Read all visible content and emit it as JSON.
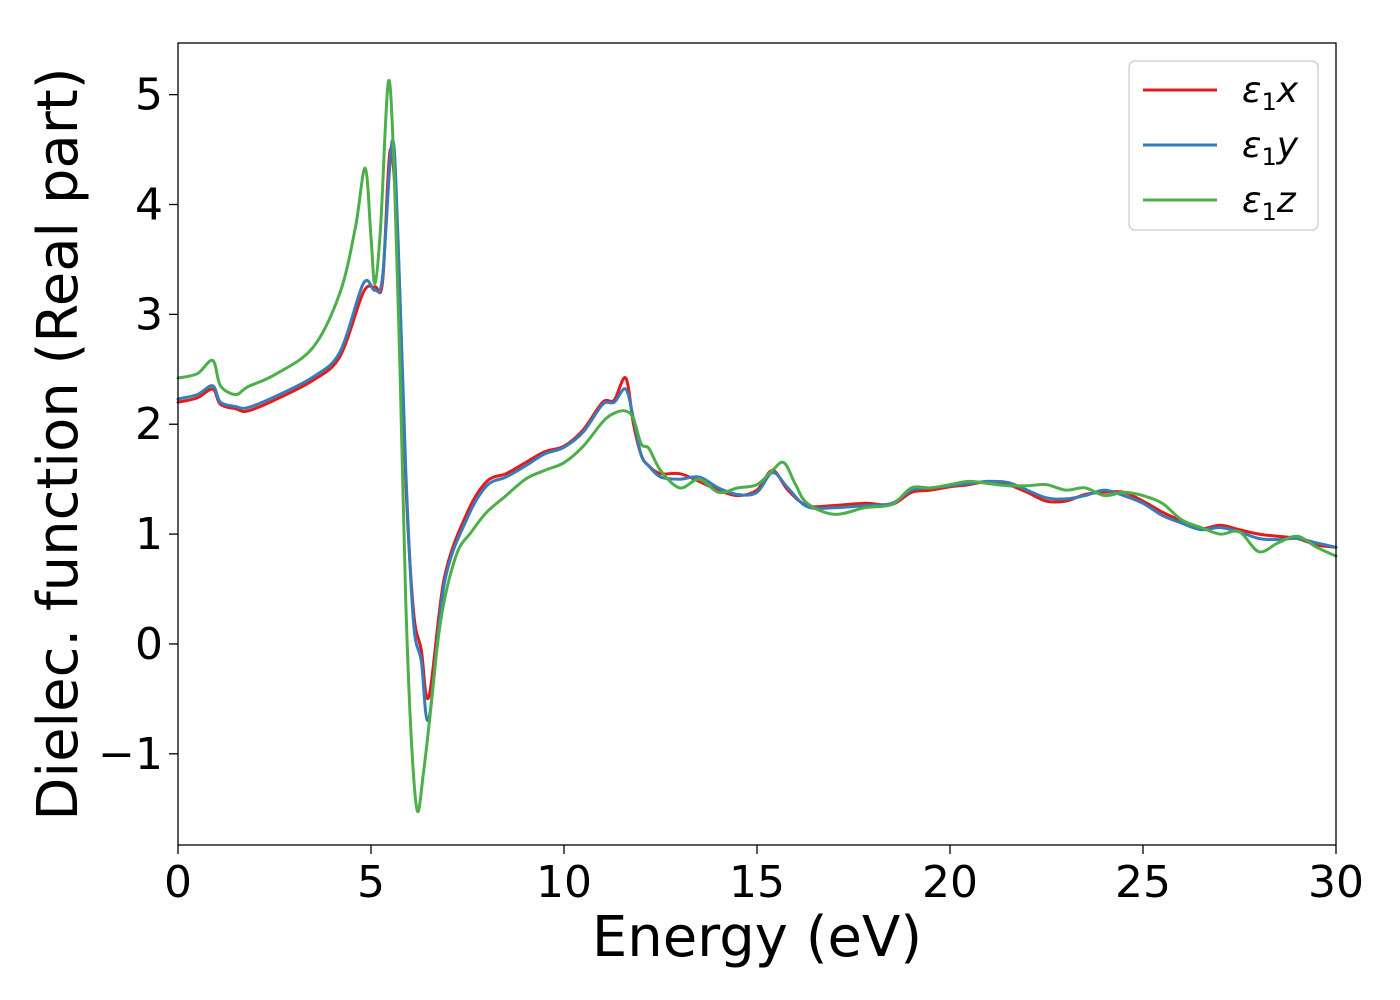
{
  "chart_data": {
    "type": "line",
    "title": "",
    "xlabel": "Energy (eV)",
    "ylabel": "Dielec. function (Real part)",
    "xlim": [
      0,
      30
    ],
    "ylim": [
      -1.83,
      5.47
    ],
    "x_ticks": [
      0,
      5,
      10,
      15,
      20,
      25,
      30
    ],
    "y_ticks": [
      -1,
      0,
      1,
      2,
      3,
      4,
      5
    ],
    "x_tick_labels": [
      "0",
      "5",
      "10",
      "15",
      "20",
      "25",
      "30"
    ],
    "y_tick_labels": [
      "−1",
      "0",
      "1",
      "2",
      "3",
      "4",
      "5"
    ],
    "grid": false,
    "legend_position": "top-right",
    "series": [
      {
        "name": "ε1x",
        "name_base": "ε",
        "name_sub": "1",
        "name_var": "x",
        "color": "#e41a1c",
        "x": [
          0,
          0.5,
          0.9,
          1.1,
          1.5,
          1.8,
          2.5,
          3.5,
          4.2,
          4.8,
          5.1,
          5.3,
          5.5,
          5.7,
          5.9,
          6.1,
          6.3,
          6.5,
          6.9,
          7.5,
          8.0,
          8.5,
          9.0,
          9.5,
          10.0,
          10.5,
          11.0,
          11.3,
          11.6,
          11.8,
          12.0,
          12.2,
          12.5,
          13.0,
          13.5,
          14.0,
          14.5,
          15.0,
          15.4,
          15.8,
          16.3,
          17.0,
          17.8,
          18.5,
          19.0,
          19.5,
          20.0,
          20.5,
          21.0,
          21.5,
          22.0,
          22.5,
          23.0,
          23.5,
          24.0,
          24.5,
          25.0,
          25.5,
          26.0,
          26.5,
          27.0,
          27.5,
          28.0,
          28.5,
          29.0,
          29.5,
          30.0
        ],
        "values": [
          2.2,
          2.24,
          2.32,
          2.18,
          2.14,
          2.12,
          2.22,
          2.4,
          2.62,
          3.2,
          3.25,
          3.3,
          4.5,
          3.6,
          1.5,
          0.3,
          -0.05,
          -0.48,
          0.6,
          1.2,
          1.48,
          1.55,
          1.65,
          1.75,
          1.8,
          1.95,
          2.2,
          2.22,
          2.42,
          2.0,
          1.72,
          1.62,
          1.55,
          1.55,
          1.48,
          1.4,
          1.35,
          1.4,
          1.58,
          1.4,
          1.26,
          1.26,
          1.28,
          1.27,
          1.38,
          1.4,
          1.43,
          1.45,
          1.48,
          1.45,
          1.38,
          1.3,
          1.3,
          1.36,
          1.38,
          1.38,
          1.3,
          1.2,
          1.12,
          1.05,
          1.08,
          1.04,
          1.0,
          0.98,
          0.96,
          0.9,
          0.88
        ]
      },
      {
        "name": "ε1y",
        "name_base": "ε",
        "name_sub": "1",
        "name_var": "y",
        "color": "#377eb8",
        "x": [
          0,
          0.5,
          0.9,
          1.1,
          1.5,
          1.8,
          2.5,
          3.5,
          4.2,
          4.8,
          5.1,
          5.3,
          5.55,
          5.7,
          5.9,
          6.1,
          6.3,
          6.5,
          6.9,
          7.5,
          8.0,
          8.5,
          9.0,
          9.5,
          10.0,
          10.5,
          11.0,
          11.3,
          11.6,
          11.8,
          12.0,
          12.2,
          12.5,
          13.0,
          13.5,
          14.0,
          14.5,
          15.0,
          15.4,
          15.8,
          16.3,
          17.0,
          17.8,
          18.5,
          19.0,
          19.5,
          20.0,
          20.5,
          21.0,
          21.5,
          22.0,
          22.5,
          23.0,
          23.5,
          24.0,
          24.5,
          25.0,
          25.5,
          26.0,
          26.5,
          27.0,
          27.5,
          28.0,
          28.5,
          29.0,
          29.5,
          30.0
        ],
        "values": [
          2.23,
          2.27,
          2.35,
          2.2,
          2.16,
          2.15,
          2.25,
          2.43,
          2.66,
          3.28,
          3.22,
          3.35,
          4.58,
          3.7,
          1.6,
          0.2,
          -0.15,
          -0.68,
          0.55,
          1.15,
          1.44,
          1.52,
          1.62,
          1.73,
          1.79,
          1.93,
          2.18,
          2.2,
          2.32,
          2.05,
          1.72,
          1.62,
          1.52,
          1.5,
          1.52,
          1.42,
          1.36,
          1.38,
          1.56,
          1.42,
          1.25,
          1.24,
          1.26,
          1.28,
          1.4,
          1.42,
          1.44,
          1.46,
          1.48,
          1.47,
          1.4,
          1.33,
          1.32,
          1.35,
          1.4,
          1.35,
          1.28,
          1.17,
          1.1,
          1.04,
          1.06,
          1.02,
          0.96,
          0.95,
          0.96,
          0.92,
          0.88
        ]
      },
      {
        "name": "ε1z",
        "name_base": "ε",
        "name_sub": "1",
        "name_var": "z",
        "color": "#4daf4a",
        "x": [
          0,
          0.5,
          0.9,
          1.1,
          1.5,
          1.8,
          2.5,
          3.5,
          4.2,
          4.6,
          4.85,
          5.0,
          5.1,
          5.25,
          5.45,
          5.6,
          5.75,
          5.9,
          6.05,
          6.2,
          6.35,
          6.5,
          6.8,
          7.2,
          7.6,
          8.0,
          8.5,
          9.0,
          9.5,
          10.0,
          10.5,
          11.0,
          11.3,
          11.6,
          11.8,
          12.0,
          12.2,
          12.5,
          13.0,
          13.5,
          14.0,
          14.5,
          15.0,
          15.4,
          15.7,
          16.0,
          16.3,
          17.0,
          17.8,
          18.5,
          19.0,
          19.5,
          20.0,
          20.5,
          21.0,
          21.5,
          22.0,
          22.5,
          23.0,
          23.5,
          24.0,
          24.5,
          25.0,
          25.5,
          26.0,
          26.5,
          27.0,
          27.5,
          28.0,
          28.5,
          29.0,
          29.5,
          30.0
        ],
        "values": [
          2.42,
          2.46,
          2.58,
          2.35,
          2.27,
          2.34,
          2.45,
          2.7,
          3.2,
          3.8,
          4.33,
          3.7,
          3.28,
          3.8,
          5.12,
          4.3,
          2.5,
          0.4,
          -0.9,
          -1.52,
          -1.2,
          -0.75,
          0.2,
          0.8,
          1.02,
          1.2,
          1.35,
          1.5,
          1.58,
          1.65,
          1.8,
          2.02,
          2.1,
          2.12,
          2.05,
          1.82,
          1.78,
          1.58,
          1.42,
          1.5,
          1.38,
          1.42,
          1.45,
          1.58,
          1.65,
          1.45,
          1.28,
          1.18,
          1.24,
          1.27,
          1.42,
          1.42,
          1.45,
          1.48,
          1.46,
          1.44,
          1.44,
          1.45,
          1.4,
          1.42,
          1.35,
          1.38,
          1.35,
          1.28,
          1.13,
          1.06,
          1.0,
          1.02,
          0.84,
          0.92,
          0.98,
          0.88,
          0.8
        ]
      }
    ]
  }
}
